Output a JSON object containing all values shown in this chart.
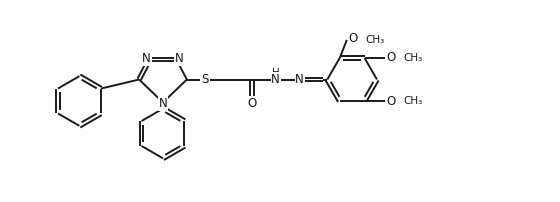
{
  "bg_color": "#ffffff",
  "line_color": "#1a1a1a",
  "line_width": 1.4,
  "font_size": 8.5,
  "figsize": [
    5.6,
    2.02
  ],
  "dpi": 100,
  "xlim": [
    0.0,
    11.0
  ],
  "ylim": [
    0.0,
    4.2
  ]
}
